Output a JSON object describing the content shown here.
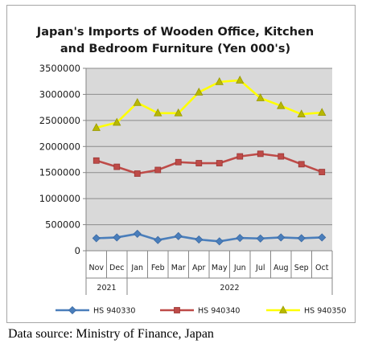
{
  "source_note": "Data source: Ministry of Finance, Japan",
  "chart_data": {
    "type": "line",
    "title_lines": [
      "Japan's Imports of  Wooden  Office, Kitchen",
      "and Bedroom Furniture (Yen 000's)"
    ],
    "categories": [
      "Nov",
      "Dec",
      "Jan",
      "Feb",
      "Mar",
      "Apr",
      "May",
      "Jun",
      "Jul",
      "Aug",
      "Sep",
      "Oct"
    ],
    "year_groups": [
      {
        "label": "2021",
        "count": 2
      },
      {
        "label": "2022",
        "count": 10
      }
    ],
    "y_ticks": [
      "0",
      "500000",
      "1000000",
      "1500000",
      "2000000",
      "2500000",
      "3000000",
      "3500000"
    ],
    "ylim": [
      0,
      3500000
    ],
    "grid": true,
    "legend_position": "bottom",
    "plot_background": "#d9d9d9",
    "series": [
      {
        "name": "HS 940330",
        "color": "#4a7ebb",
        "marker": "diamond",
        "values": [
          240000,
          255000,
          325000,
          205000,
          280000,
          215000,
          180000,
          245000,
          235000,
          255000,
          240000,
          255000
        ]
      },
      {
        "name": "HS 940340",
        "color": "#be4b48",
        "marker": "square",
        "values": [
          1730000,
          1610000,
          1480000,
          1550000,
          1700000,
          1680000,
          1680000,
          1810000,
          1860000,
          1810000,
          1660000,
          1510000
        ]
      },
      {
        "name": "HS 940350",
        "color": "#ffff00",
        "marker": "triangle",
        "values": [
          2360000,
          2460000,
          2840000,
          2640000,
          2640000,
          3040000,
          3240000,
          3270000,
          2930000,
          2780000,
          2620000,
          2650000
        ]
      }
    ]
  }
}
